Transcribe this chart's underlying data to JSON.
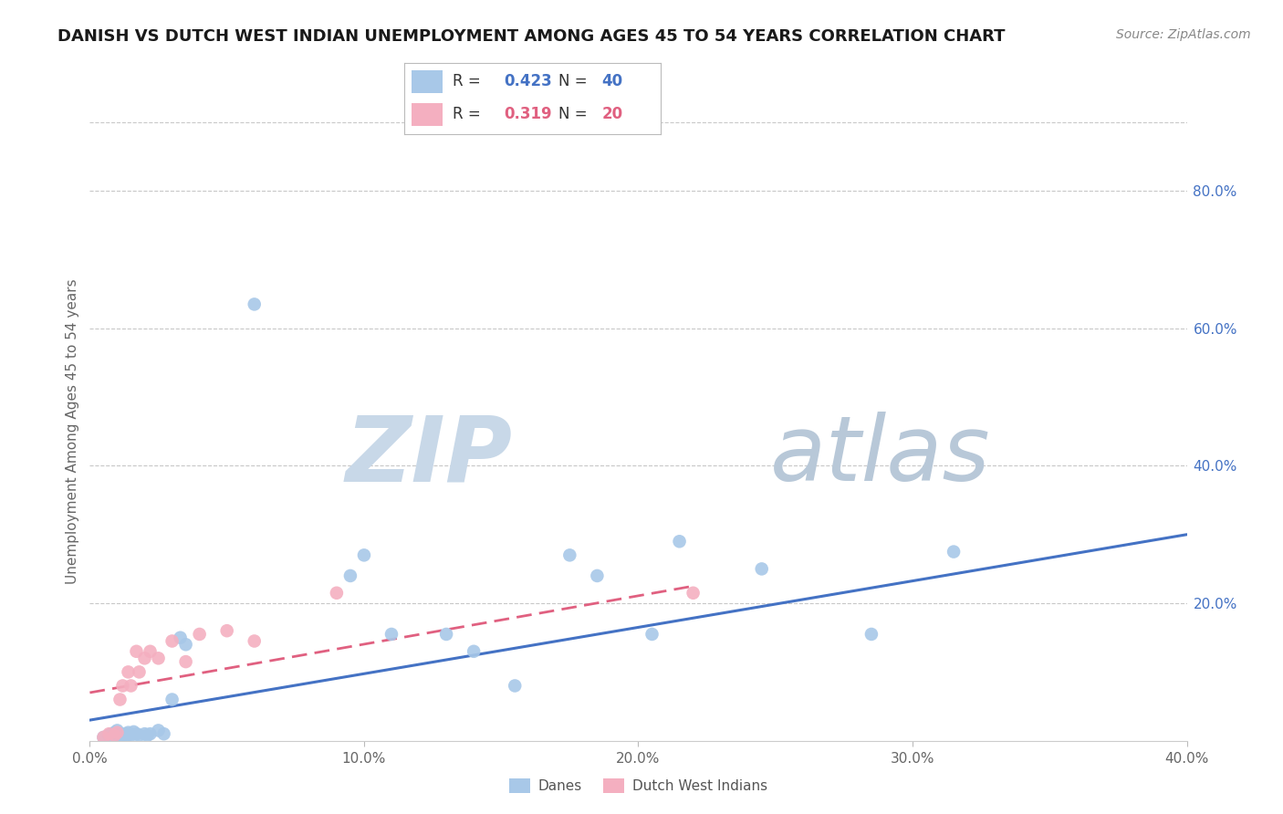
{
  "title": "DANISH VS DUTCH WEST INDIAN UNEMPLOYMENT AMONG AGES 45 TO 54 YEARS CORRELATION CHART",
  "source": "Source: ZipAtlas.com",
  "ylabel": "Unemployment Among Ages 45 to 54 years",
  "xlim": [
    0.0,
    0.4
  ],
  "ylim": [
    0.0,
    0.9
  ],
  "xticks": [
    0.0,
    0.1,
    0.2,
    0.3,
    0.4
  ],
  "yticks_right": [
    0.0,
    0.2,
    0.4,
    0.6,
    0.8
  ],
  "ytick_labels_right": [
    "",
    "20.0%",
    "40.0%",
    "60.0%",
    "80.0%"
  ],
  "xtick_labels": [
    "0.0%",
    "10.0%",
    "20.0%",
    "30.0%",
    "40.0%"
  ],
  "danes_x": [
    0.005,
    0.007,
    0.008,
    0.009,
    0.01,
    0.01,
    0.01,
    0.01,
    0.011,
    0.012,
    0.013,
    0.013,
    0.014,
    0.015,
    0.015,
    0.016,
    0.017,
    0.018,
    0.02,
    0.021,
    0.022,
    0.025,
    0.027,
    0.03,
    0.033,
    0.035,
    0.06,
    0.095,
    0.1,
    0.11,
    0.13,
    0.14,
    0.155,
    0.175,
    0.185,
    0.205,
    0.215,
    0.245,
    0.285,
    0.315
  ],
  "danes_y": [
    0.005,
    0.008,
    0.01,
    0.012,
    0.01,
    0.008,
    0.012,
    0.015,
    0.01,
    0.008,
    0.01,
    0.005,
    0.012,
    0.01,
    0.008,
    0.013,
    0.01,
    0.008,
    0.01,
    0.008,
    0.01,
    0.015,
    0.01,
    0.06,
    0.15,
    0.14,
    0.635,
    0.24,
    0.27,
    0.155,
    0.155,
    0.13,
    0.08,
    0.27,
    0.24,
    0.155,
    0.29,
    0.25,
    0.155,
    0.275
  ],
  "dwi_x": [
    0.005,
    0.007,
    0.009,
    0.01,
    0.011,
    0.012,
    0.014,
    0.015,
    0.017,
    0.018,
    0.02,
    0.022,
    0.025,
    0.03,
    0.035,
    0.04,
    0.05,
    0.06,
    0.09,
    0.22
  ],
  "dwi_y": [
    0.005,
    0.01,
    0.008,
    0.012,
    0.06,
    0.08,
    0.1,
    0.08,
    0.13,
    0.1,
    0.12,
    0.13,
    0.12,
    0.145,
    0.115,
    0.155,
    0.16,
    0.145,
    0.215,
    0.215
  ],
  "danes_R": 0.423,
  "danes_N": 40,
  "dwi_R": 0.319,
  "dwi_N": 20,
  "danes_color": "#a8c8e8",
  "dwi_color": "#f4afc0",
  "danes_line_color": "#4472c4",
  "dwi_line_color": "#e06080",
  "grid_color": "#c8c8c8",
  "background_color": "#ffffff",
  "watermark_zip_color": "#c8d8e8",
  "watermark_atlas_color": "#b8c8d8",
  "title_fontsize": 13,
  "source_fontsize": 10,
  "tick_fontsize": 11,
  "ylabel_fontsize": 11
}
